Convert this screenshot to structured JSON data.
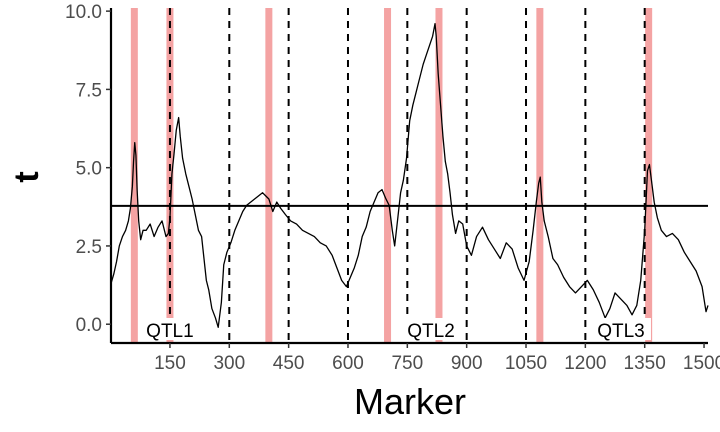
{
  "chart_data": {
    "type": "line",
    "xlabel": "Marker",
    "ylabel": "t",
    "xlim": [
      1,
      1510
    ],
    "ylim": [
      -0.6,
      10.1
    ],
    "x_ticks": [
      150,
      300,
      450,
      600,
      750,
      900,
      1050,
      1200,
      1350,
      1500
    ],
    "y_ticks": [
      0.0,
      2.5,
      5.0,
      7.5,
      10.0
    ],
    "y_tick_labels": [
      "0.0",
      "2.5",
      "5.0",
      "7.5",
      "10.0"
    ],
    "threshold": 3.78,
    "highlight_color": "#f4a3a3",
    "highlight_markers": [
      60,
      150,
      400,
      700,
      830,
      1085,
      1360
    ],
    "dashed_lines": [
      150,
      300,
      450,
      600,
      750,
      900,
      1050,
      1200,
      1350
    ],
    "qtl_labels": [
      {
        "text": "QTL1",
        "x": 150
      },
      {
        "text": "QTL2",
        "x": 810
      },
      {
        "text": "QTL3",
        "x": 1290
      }
    ],
    "series": [
      {
        "points": [
          [
            1,
            1.3
          ],
          [
            8,
            1.6
          ],
          [
            15,
            2.0
          ],
          [
            22,
            2.5
          ],
          [
            30,
            2.8
          ],
          [
            38,
            3.0
          ],
          [
            45,
            3.3
          ],
          [
            50,
            3.7
          ],
          [
            55,
            4.4
          ],
          [
            58,
            5.2
          ],
          [
            61,
            5.8
          ],
          [
            64,
            5.4
          ],
          [
            67,
            4.3
          ],
          [
            71,
            3.3
          ],
          [
            76,
            2.7
          ],
          [
            82,
            3.0
          ],
          [
            90,
            3.0
          ],
          [
            100,
            3.2
          ],
          [
            110,
            2.8
          ],
          [
            120,
            3.1
          ],
          [
            130,
            3.3
          ],
          [
            140,
            2.8
          ],
          [
            146,
            2.9
          ],
          [
            150,
            3.4
          ],
          [
            155,
            4.8
          ],
          [
            160,
            5.4
          ],
          [
            166,
            6.2
          ],
          [
            172,
            6.6
          ],
          [
            176,
            6.0
          ],
          [
            182,
            5.3
          ],
          [
            190,
            4.8
          ],
          [
            198,
            4.4
          ],
          [
            206,
            4.0
          ],
          [
            214,
            3.5
          ],
          [
            222,
            3.0
          ],
          [
            230,
            2.8
          ],
          [
            236,
            2.1
          ],
          [
            242,
            1.4
          ],
          [
            248,
            1.1
          ],
          [
            256,
            0.5
          ],
          [
            265,
            0.2
          ],
          [
            272,
            -0.1
          ],
          [
            280,
            0.7
          ],
          [
            286,
            1.9
          ],
          [
            294,
            2.3
          ],
          [
            304,
            2.6
          ],
          [
            314,
            3.0
          ],
          [
            324,
            3.3
          ],
          [
            334,
            3.6
          ],
          [
            344,
            3.8
          ],
          [
            354,
            3.9
          ],
          [
            364,
            4.0
          ],
          [
            374,
            4.1
          ],
          [
            384,
            4.2
          ],
          [
            392,
            4.1
          ],
          [
            400,
            4.0
          ],
          [
            410,
            3.6
          ],
          [
            420,
            3.9
          ],
          [
            430,
            3.7
          ],
          [
            442,
            3.5
          ],
          [
            455,
            3.3
          ],
          [
            470,
            3.2
          ],
          [
            485,
            3.0
          ],
          [
            500,
            2.9
          ],
          [
            515,
            2.8
          ],
          [
            530,
            2.6
          ],
          [
            545,
            2.5
          ],
          [
            560,
            2.2
          ],
          [
            572,
            1.8
          ],
          [
            584,
            1.4
          ],
          [
            596,
            1.2
          ],
          [
            606,
            1.5
          ],
          [
            616,
            1.8
          ],
          [
            626,
            2.2
          ],
          [
            636,
            2.8
          ],
          [
            646,
            3.1
          ],
          [
            656,
            3.6
          ],
          [
            666,
            3.9
          ],
          [
            676,
            4.2
          ],
          [
            686,
            4.3
          ],
          [
            696,
            4.0
          ],
          [
            704,
            3.8
          ],
          [
            712,
            3.0
          ],
          [
            718,
            2.5
          ],
          [
            726,
            3.4
          ],
          [
            733,
            4.2
          ],
          [
            740,
            4.6
          ],
          [
            748,
            5.3
          ],
          [
            756,
            6.5
          ],
          [
            764,
            7.0
          ],
          [
            772,
            7.4
          ],
          [
            780,
            7.8
          ],
          [
            790,
            8.3
          ],
          [
            798,
            8.6
          ],
          [
            806,
            8.9
          ],
          [
            814,
            9.2
          ],
          [
            820,
            9.6
          ],
          [
            823,
            9.2
          ],
          [
            828,
            8.0
          ],
          [
            834,
            7.0
          ],
          [
            840,
            6.0
          ],
          [
            846,
            5.2
          ],
          [
            852,
            4.8
          ],
          [
            858,
            4.2
          ],
          [
            864,
            3.5
          ],
          [
            872,
            2.9
          ],
          [
            880,
            3.3
          ],
          [
            890,
            3.2
          ],
          [
            900,
            2.5
          ],
          [
            912,
            2.2
          ],
          [
            925,
            2.8
          ],
          [
            940,
            3.1
          ],
          [
            955,
            2.7
          ],
          [
            970,
            2.4
          ],
          [
            985,
            2.1
          ],
          [
            1000,
            2.6
          ],
          [
            1015,
            2.4
          ],
          [
            1030,
            1.8
          ],
          [
            1045,
            1.4
          ],
          [
            1058,
            2.0
          ],
          [
            1068,
            3.0
          ],
          [
            1076,
            3.9
          ],
          [
            1082,
            4.5
          ],
          [
            1086,
            4.7
          ],
          [
            1090,
            3.9
          ],
          [
            1096,
            3.3
          ],
          [
            1106,
            2.8
          ],
          [
            1118,
            2.1
          ],
          [
            1130,
            1.9
          ],
          [
            1145,
            1.5
          ],
          [
            1160,
            1.2
          ],
          [
            1175,
            1.0
          ],
          [
            1190,
            1.2
          ],
          [
            1205,
            1.4
          ],
          [
            1220,
            1.1
          ],
          [
            1235,
            0.7
          ],
          [
            1250,
            0.2
          ],
          [
            1262,
            0.5
          ],
          [
            1275,
            1.0
          ],
          [
            1290,
            0.8
          ],
          [
            1305,
            0.6
          ],
          [
            1318,
            0.3
          ],
          [
            1330,
            0.6
          ],
          [
            1340,
            1.4
          ],
          [
            1350,
            3.0
          ],
          [
            1357,
            4.9
          ],
          [
            1362,
            5.1
          ],
          [
            1367,
            4.6
          ],
          [
            1374,
            3.9
          ],
          [
            1382,
            3.4
          ],
          [
            1392,
            3.0
          ],
          [
            1405,
            2.8
          ],
          [
            1420,
            2.9
          ],
          [
            1435,
            2.7
          ],
          [
            1450,
            2.3
          ],
          [
            1465,
            2.0
          ],
          [
            1480,
            1.7
          ],
          [
            1495,
            1.2
          ],
          [
            1505,
            0.4
          ],
          [
            1510,
            0.6
          ]
        ]
      }
    ]
  }
}
